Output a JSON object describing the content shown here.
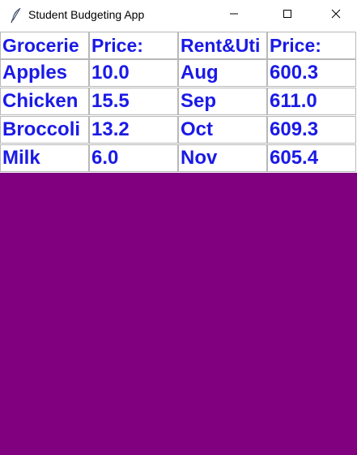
{
  "window": {
    "title": "Student Budgeting App",
    "icon": "feather-icon",
    "controls": [
      "minimize-icon",
      "maximize-icon",
      "close-icon"
    ]
  },
  "colors": {
    "background": "#800080",
    "cell_text": "#1a1ae6",
    "cell_background": "#ffffff",
    "cell_border": "#b8b8b8"
  },
  "table": {
    "headers": [
      "Grocerie",
      "Price:",
      "Rent&Uti",
      "Price:"
    ],
    "rows": [
      [
        "Apples",
        "10.0",
        "Aug",
        "600.3"
      ],
      [
        "Chicken",
        "15.5",
        "Sep",
        "611.0"
      ],
      [
        "Broccoli",
        "13.2",
        "Oct",
        "609.3"
      ],
      [
        "Milk",
        "6.0",
        "Nov",
        "605.4"
      ]
    ]
  }
}
